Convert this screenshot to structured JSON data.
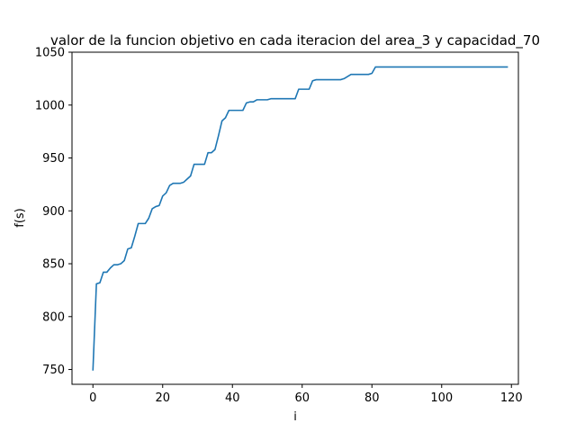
{
  "chart_data": {
    "type": "line",
    "title": "valor de la funcion objetivo en cada iteracion del area_3 y capacidad_70",
    "xlabel": "i",
    "ylabel": "f(s)",
    "xlim": [
      -6,
      122
    ],
    "ylim": [
      736,
      1050
    ],
    "xticks": [
      0,
      20,
      40,
      60,
      80,
      100,
      120
    ],
    "yticks": [
      750,
      800,
      850,
      900,
      950,
      1000,
      1050
    ],
    "grid": false,
    "line_color": "#1f77b4",
    "series": [
      {
        "x": [
          0,
          1,
          2,
          3,
          4,
          5,
          6,
          7,
          8,
          9,
          10,
          11,
          12,
          13,
          14,
          15,
          16,
          17,
          18,
          19,
          20,
          21,
          22,
          23,
          24,
          25,
          26,
          27,
          28,
          29,
          30,
          31,
          32,
          33,
          34,
          35,
          36,
          37,
          38,
          39,
          40,
          41,
          42,
          43,
          44,
          45,
          46,
          47,
          48,
          49,
          50,
          51,
          52,
          53,
          54,
          55,
          56,
          57,
          58,
          59,
          60,
          61,
          62,
          63,
          64,
          65,
          66,
          67,
          68,
          69,
          70,
          71,
          72,
          73,
          74,
          75,
          76,
          77,
          78,
          79,
          80,
          81,
          82,
          83,
          84,
          85,
          86,
          87,
          88,
          89,
          90,
          91,
          92,
          93,
          94,
          95,
          96,
          97,
          98,
          99,
          100,
          101,
          102,
          103,
          104,
          105,
          106,
          107,
          108,
          109,
          110,
          111,
          112,
          113,
          114,
          115,
          116,
          117,
          118,
          119
        ],
        "values": [
          749,
          831,
          832,
          842,
          842,
          846,
          849,
          849,
          850,
          853,
          864,
          865,
          876,
          888,
          888,
          888,
          893,
          902,
          904,
          905,
          914,
          917,
          924,
          926,
          926,
          926,
          927,
          930,
          933,
          944,
          944,
          944,
          944,
          955,
          955,
          958,
          971,
          985,
          988,
          995,
          995,
          995,
          995,
          995,
          1002,
          1003,
          1003,
          1005,
          1005,
          1005,
          1005,
          1006,
          1006,
          1006,
          1006,
          1006,
          1006,
          1006,
          1006,
          1015,
          1015,
          1015,
          1015,
          1023,
          1024,
          1024,
          1024,
          1024,
          1024,
          1024,
          1024,
          1024,
          1025,
          1027,
          1029,
          1029,
          1029,
          1029,
          1029,
          1029,
          1030,
          1036,
          1036,
          1036,
          1036,
          1036,
          1036,
          1036,
          1036,
          1036,
          1036,
          1036,
          1036,
          1036,
          1036,
          1036,
          1036,
          1036,
          1036,
          1036,
          1036,
          1036,
          1036,
          1036,
          1036,
          1036,
          1036,
          1036,
          1036,
          1036,
          1036,
          1036,
          1036,
          1036,
          1036,
          1036,
          1036,
          1036,
          1036,
          1036
        ]
      }
    ]
  }
}
